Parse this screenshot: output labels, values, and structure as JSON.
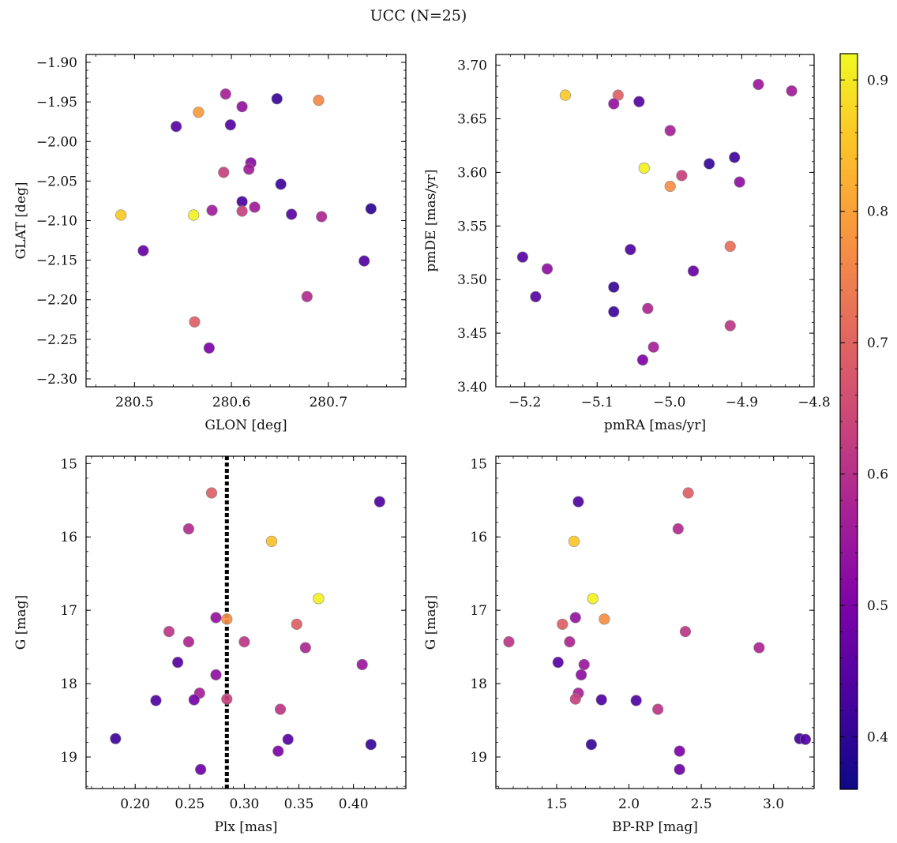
{
  "figure": {
    "title": "UCC (N=25)"
  },
  "colorbar": {
    "range": [
      0.36,
      0.92
    ],
    "ticks": [
      0.4,
      0.5,
      0.6,
      0.7,
      0.8,
      0.9
    ],
    "tick_labels": [
      "0.4",
      "0.5",
      "0.6",
      "0.7",
      "0.8",
      "0.9"
    ],
    "colormap": "plasma"
  },
  "chart_data": [
    {
      "type": "scatter",
      "xlabel": "GLON [deg]",
      "ylabel": "GLAT [deg]",
      "xlim": [
        280.45,
        280.78
      ],
      "ylim": [
        -2.31,
        -1.89
      ],
      "yinvert": false,
      "xticks": [
        280.5,
        280.6,
        280.7
      ],
      "xtick_labels": [
        "280.5",
        "280.6",
        "280.7"
      ],
      "xminor_step": 0.02,
      "yticks": [
        -2.3,
        -2.25,
        -2.2,
        -2.15,
        -2.1,
        -2.05,
        -2.0,
        -1.95,
        -1.9
      ],
      "ytick_labels": [
        "−2.30",
        "−2.25",
        "−2.20",
        "−2.15",
        "−2.10",
        "−2.05",
        "−2.00",
        "−1.95",
        "−1.90"
      ],
      "yminor_step": 0.01,
      "points": [
        [
          280.566,
          -1.963,
          0.79
        ],
        [
          280.594,
          -1.94,
          0.57
        ],
        [
          280.611,
          -1.956,
          0.54
        ],
        [
          280.647,
          -1.946,
          0.41
        ],
        [
          280.69,
          -1.948,
          0.76
        ],
        [
          280.543,
          -1.981,
          0.45
        ],
        [
          280.599,
          -1.979,
          0.45
        ],
        [
          280.62,
          -2.027,
          0.52
        ],
        [
          280.592,
          -2.039,
          0.63
        ],
        [
          280.618,
          -2.035,
          0.56
        ],
        [
          280.651,
          -2.054,
          0.42
        ],
        [
          280.611,
          -2.076,
          0.43
        ],
        [
          280.486,
          -2.093,
          0.86
        ],
        [
          280.561,
          -2.093,
          0.91
        ],
        [
          280.58,
          -2.087,
          0.56
        ],
        [
          280.611,
          -2.088,
          0.63
        ],
        [
          280.624,
          -2.083,
          0.56
        ],
        [
          280.662,
          -2.092,
          0.45
        ],
        [
          280.693,
          -2.095,
          0.58
        ],
        [
          280.744,
          -2.085,
          0.4
        ],
        [
          280.509,
          -2.138,
          0.47
        ],
        [
          280.737,
          -2.151,
          0.44
        ],
        [
          280.678,
          -2.196,
          0.59
        ],
        [
          280.562,
          -2.228,
          0.69
        ],
        [
          280.577,
          -2.261,
          0.5
        ]
      ]
    },
    {
      "type": "scatter",
      "xlabel": "pmRA [mas/yr]",
      "ylabel": "pmDE [mas/yr]",
      "xlim": [
        -5.24,
        -4.8
      ],
      "ylim": [
        3.4,
        3.71
      ],
      "yinvert": false,
      "xticks": [
        -5.2,
        -5.1,
        -5.0,
        -4.9,
        -4.8
      ],
      "xtick_labels": [
        "−5.2",
        "−5.1",
        "−5.0",
        "−4.9",
        "−4.8"
      ],
      "xminor_step": 0.02,
      "yticks": [
        3.4,
        3.45,
        3.5,
        3.55,
        3.6,
        3.65,
        3.7
      ],
      "ytick_labels": [
        "3.40",
        "3.45",
        "3.50",
        "3.55",
        "3.60",
        "3.65",
        "3.70"
      ],
      "yminor_step": 0.01,
      "points": [
        [
          -5.144,
          3.672,
          0.86
        ],
        [
          -5.071,
          3.672,
          0.69
        ],
        [
          -5.077,
          3.664,
          0.54
        ],
        [
          -5.042,
          3.666,
          0.45
        ],
        [
          -4.877,
          3.682,
          0.55
        ],
        [
          -4.831,
          3.676,
          0.56
        ],
        [
          -4.999,
          3.639,
          0.57
        ],
        [
          -5.035,
          3.604,
          0.91
        ],
        [
          -4.983,
          3.597,
          0.63
        ],
        [
          -4.999,
          3.587,
          0.77
        ],
        [
          -4.945,
          3.608,
          0.41
        ],
        [
          -4.91,
          3.614,
          0.42
        ],
        [
          -4.903,
          3.591,
          0.53
        ],
        [
          -5.203,
          3.521,
          0.45
        ],
        [
          -5.169,
          3.51,
          0.53
        ],
        [
          -5.054,
          3.528,
          0.44
        ],
        [
          -4.916,
          3.531,
          0.72
        ],
        [
          -5.185,
          3.484,
          0.45
        ],
        [
          -5.077,
          3.493,
          0.41
        ],
        [
          -4.967,
          3.508,
          0.47
        ],
        [
          -5.077,
          3.47,
          0.42
        ],
        [
          -5.03,
          3.473,
          0.58
        ],
        [
          -4.916,
          3.457,
          0.61
        ],
        [
          -5.022,
          3.437,
          0.57
        ],
        [
          -5.037,
          3.425,
          0.5
        ]
      ]
    },
    {
      "type": "scatter",
      "xlabel": "Plx [mas]",
      "ylabel": "G [mag]",
      "xlim": [
        0.155,
        0.448
      ],
      "ylim": [
        19.43,
        14.9
      ],
      "yinvert": true,
      "xticks": [
        0.2,
        0.25,
        0.3,
        0.35,
        0.4
      ],
      "xtick_labels": [
        "0.20",
        "0.25",
        "0.30",
        "0.35",
        "0.40"
      ],
      "xminor_step": 0.01,
      "yticks": [
        15,
        16,
        17,
        18,
        19
      ],
      "ytick_labels": [
        "15",
        "16",
        "17",
        "18",
        "19"
      ],
      "yminor_step": 0.2,
      "vline": 0.284,
      "points": [
        [
          0.27,
          15.4,
          0.69
        ],
        [
          0.424,
          15.52,
          0.44
        ],
        [
          0.249,
          15.89,
          0.59
        ],
        [
          0.325,
          16.06,
          0.85
        ],
        [
          0.368,
          16.84,
          0.91
        ],
        [
          0.274,
          17.1,
          0.54
        ],
        [
          0.284,
          17.12,
          0.77
        ],
        [
          0.348,
          17.19,
          0.69
        ],
        [
          0.231,
          17.29,
          0.61
        ],
        [
          0.249,
          17.43,
          0.58
        ],
        [
          0.3,
          17.43,
          0.61
        ],
        [
          0.356,
          17.51,
          0.58
        ],
        [
          0.239,
          17.71,
          0.45
        ],
        [
          0.408,
          17.74,
          0.55
        ],
        [
          0.274,
          17.88,
          0.53
        ],
        [
          0.259,
          18.13,
          0.57
        ],
        [
          0.219,
          18.23,
          0.44
        ],
        [
          0.254,
          18.22,
          0.49
        ],
        [
          0.284,
          18.21,
          0.63
        ],
        [
          0.333,
          18.35,
          0.61
        ],
        [
          0.182,
          18.75,
          0.42
        ],
        [
          0.34,
          18.76,
          0.45
        ],
        [
          0.416,
          18.83,
          0.41
        ],
        [
          0.331,
          18.92,
          0.5
        ],
        [
          0.26,
          19.17,
          0.48
        ]
      ]
    },
    {
      "type": "scatter",
      "xlabel": "BP-RP [mag]",
      "ylabel": "G [mag]",
      "xlim": [
        1.08,
        3.28
      ],
      "ylim": [
        19.43,
        14.9
      ],
      "yinvert": true,
      "xticks": [
        1.5,
        2.0,
        2.5,
        3.0
      ],
      "xtick_labels": [
        "1.5",
        "2.0",
        "2.5",
        "3.0"
      ],
      "xminor_step": 0.1,
      "yticks": [
        15,
        16,
        17,
        18,
        19
      ],
      "ytick_labels": [
        "15",
        "16",
        "17",
        "18",
        "19"
      ],
      "yminor_step": 0.2,
      "points": [
        [
          2.41,
          15.4,
          0.69
        ],
        [
          1.65,
          15.52,
          0.44
        ],
        [
          2.34,
          15.89,
          0.59
        ],
        [
          1.62,
          16.06,
          0.86
        ],
        [
          1.75,
          16.84,
          0.91
        ],
        [
          1.63,
          17.1,
          0.54
        ],
        [
          1.83,
          17.12,
          0.77
        ],
        [
          1.54,
          17.19,
          0.69
        ],
        [
          2.39,
          17.29,
          0.61
        ],
        [
          1.17,
          17.43,
          0.61
        ],
        [
          1.59,
          17.43,
          0.58
        ],
        [
          2.9,
          17.51,
          0.58
        ],
        [
          1.51,
          17.71,
          0.45
        ],
        [
          1.69,
          17.74,
          0.55
        ],
        [
          1.67,
          17.88,
          0.53
        ],
        [
          1.65,
          18.13,
          0.57
        ],
        [
          1.63,
          18.21,
          0.63
        ],
        [
          1.81,
          18.22,
          0.44
        ],
        [
          2.05,
          18.23,
          0.44
        ],
        [
          2.2,
          18.35,
          0.61
        ],
        [
          3.18,
          18.75,
          0.42
        ],
        [
          3.22,
          18.76,
          0.44
        ],
        [
          1.74,
          18.83,
          0.41
        ],
        [
          2.35,
          18.92,
          0.5
        ],
        [
          2.35,
          19.17,
          0.48
        ]
      ]
    }
  ]
}
